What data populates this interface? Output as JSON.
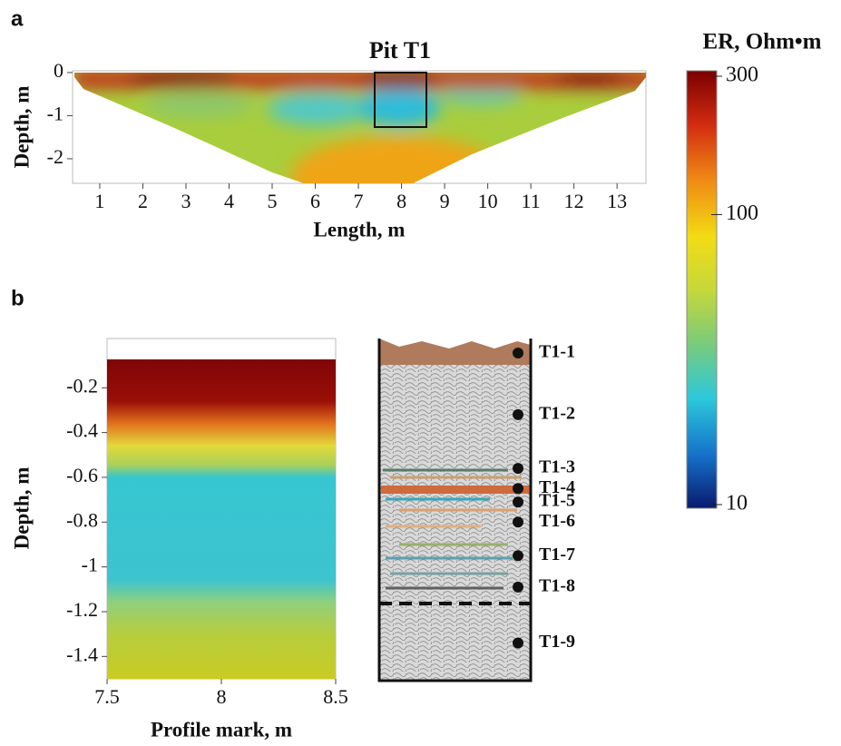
{
  "chart_data": [
    {
      "type": "section",
      "panel": "a",
      "annotation": "Pit T1",
      "xlabel": "Length, m",
      "ylabel": "Depth, m",
      "xlim": [
        0.37,
        13.67
      ],
      "ylim": [
        -2.57,
        0.04
      ],
      "xticks": [
        1,
        2,
        3,
        4,
        5,
        6,
        7,
        8,
        9,
        10,
        11,
        12,
        13
      ],
      "yticks": [
        0,
        -1,
        -2
      ]
    },
    {
      "type": "section",
      "panel": "b",
      "xlabel": "Profile mark, m",
      "ylabel": "Depth, m",
      "xlim": [
        7.5,
        8.5
      ],
      "ylim": [
        -1.5,
        0.02
      ],
      "xticks": [
        7.5,
        8,
        8.5
      ],
      "yticks": [
        -0.2,
        -0.4,
        -0.6,
        -0.8,
        -1,
        -1.2,
        -1.4
      ]
    },
    {
      "type": "pit-log",
      "samples": [
        {
          "label": "T1-1",
          "depth": -0.045
        },
        {
          "label": "T1-2",
          "depth": -0.32
        },
        {
          "label": "T1-3",
          "depth": -0.56
        },
        {
          "label": "T1-4",
          "depth": -0.65
        },
        {
          "label": "T1-5",
          "depth": -0.71
        },
        {
          "label": "T1-6",
          "depth": -0.8
        },
        {
          "label": "T1-7",
          "depth": -0.95
        },
        {
          "label": "T1-8",
          "depth": -1.09
        },
        {
          "label": "T1-9",
          "depth": -1.34
        }
      ]
    },
    {
      "type": "colorbar",
      "title": "ER, Ohm•m",
      "log": true,
      "lim": [
        10,
        300
      ],
      "ticks": [
        10,
        100,
        300
      ]
    }
  ]
}
